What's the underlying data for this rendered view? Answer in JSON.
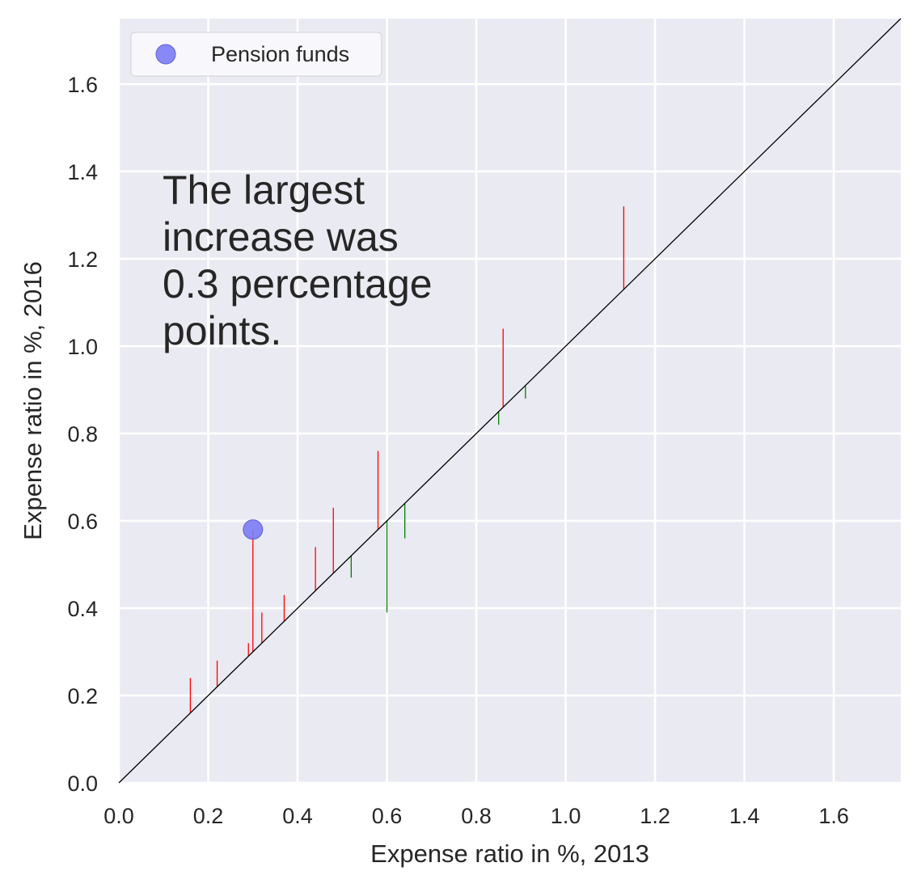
{
  "chart_data": {
    "type": "scatter",
    "title": "",
    "xlabel": "Expense ratio in %, 2013",
    "ylabel": "Expense ratio in %, 2016",
    "xlim": [
      0,
      1.75
    ],
    "ylim": [
      0,
      1.75
    ],
    "x_ticks": [
      "0.0",
      "0.2",
      "0.4",
      "0.6",
      "0.8",
      "1.0",
      "1.2",
      "1.4",
      "1.6"
    ],
    "y_ticks": [
      "0.0",
      "0.2",
      "0.4",
      "0.6",
      "0.8",
      "1.0",
      "1.2",
      "1.4",
      "1.6"
    ],
    "grid": true,
    "legend_position": "top-left",
    "series": [
      {
        "name": "Pension funds",
        "color": "#7b7bf5",
        "points": [
          {
            "x": 0.3,
            "y": 0.58
          }
        ]
      }
    ],
    "changes": [
      {
        "x": 0.16,
        "y2013": 0.16,
        "y2016": 0.24
      },
      {
        "x": 0.22,
        "y2013": 0.22,
        "y2016": 0.28
      },
      {
        "x": 0.29,
        "y2013": 0.29,
        "y2016": 0.32
      },
      {
        "x": 0.3,
        "y2013": 0.3,
        "y2016": 0.58
      },
      {
        "x": 0.32,
        "y2013": 0.32,
        "y2016": 0.39
      },
      {
        "x": 0.37,
        "y2013": 0.37,
        "y2016": 0.43
      },
      {
        "x": 0.44,
        "y2013": 0.44,
        "y2016": 0.54
      },
      {
        "x": 0.48,
        "y2013": 0.48,
        "y2016": 0.63
      },
      {
        "x": 0.52,
        "y2013": 0.52,
        "y2016": 0.47
      },
      {
        "x": 0.58,
        "y2013": 0.58,
        "y2016": 0.76
      },
      {
        "x": 0.6,
        "y2013": 0.6,
        "y2016": 0.39
      },
      {
        "x": 0.64,
        "y2013": 0.64,
        "y2016": 0.56
      },
      {
        "x": 0.85,
        "y2013": 0.85,
        "y2016": 0.82
      },
      {
        "x": 0.86,
        "y2013": 0.86,
        "y2016": 1.04
      },
      {
        "x": 0.91,
        "y2013": 0.91,
        "y2016": 0.88
      },
      {
        "x": 1.13,
        "y2013": 1.13,
        "y2016": 1.32
      }
    ],
    "increase_color": "#ff0000",
    "decrease_color": "#008000",
    "diagonal_color": "#000000",
    "background_color": "#eaeaf2",
    "annotation": [
      "The largest",
      "increase was",
      "0.3 percentage",
      "points."
    ]
  }
}
